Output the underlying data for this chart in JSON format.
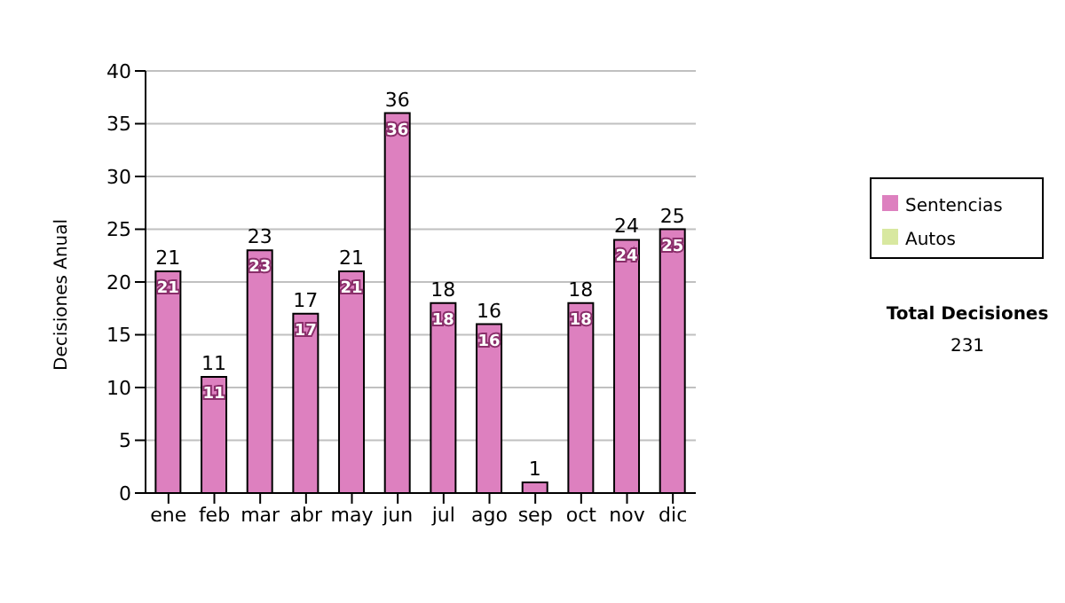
{
  "chart_data": {
    "type": "bar",
    "ylabel": "Decisiones Anual",
    "categories": [
      "ene",
      "feb",
      "mar",
      "abr",
      "may",
      "jun",
      "jul",
      "ago",
      "sep",
      "oct",
      "nov",
      "dic"
    ],
    "series": [
      {
        "name": "Sentencias",
        "color": "#dd80bf",
        "values": [
          21,
          11,
          23,
          17,
          21,
          36,
          18,
          16,
          1,
          18,
          24,
          25
        ],
        "value_labels": [
          "21",
          "11",
          "23",
          "17",
          "21",
          "36",
          "18",
          "16",
          null,
          "18",
          "24",
          "25"
        ]
      },
      {
        "name": "Autos",
        "color": "#d8e8a0",
        "values": [
          0,
          0,
          0,
          0,
          0,
          0,
          0,
          0,
          0,
          0,
          0,
          0
        ]
      }
    ],
    "stacked": true,
    "totals": [
      "21",
      "11",
      "23",
      "17",
      "21",
      "36",
      "18",
      "16",
      "1",
      "18",
      "24",
      "25"
    ],
    "ylim": [
      0,
      40
    ],
    "yticks": [
      0,
      5,
      10,
      15,
      20,
      25,
      30,
      35,
      40
    ],
    "grid": "y",
    "legend": "right",
    "annotations": [
      "Total Decisiones",
      "231"
    ]
  }
}
